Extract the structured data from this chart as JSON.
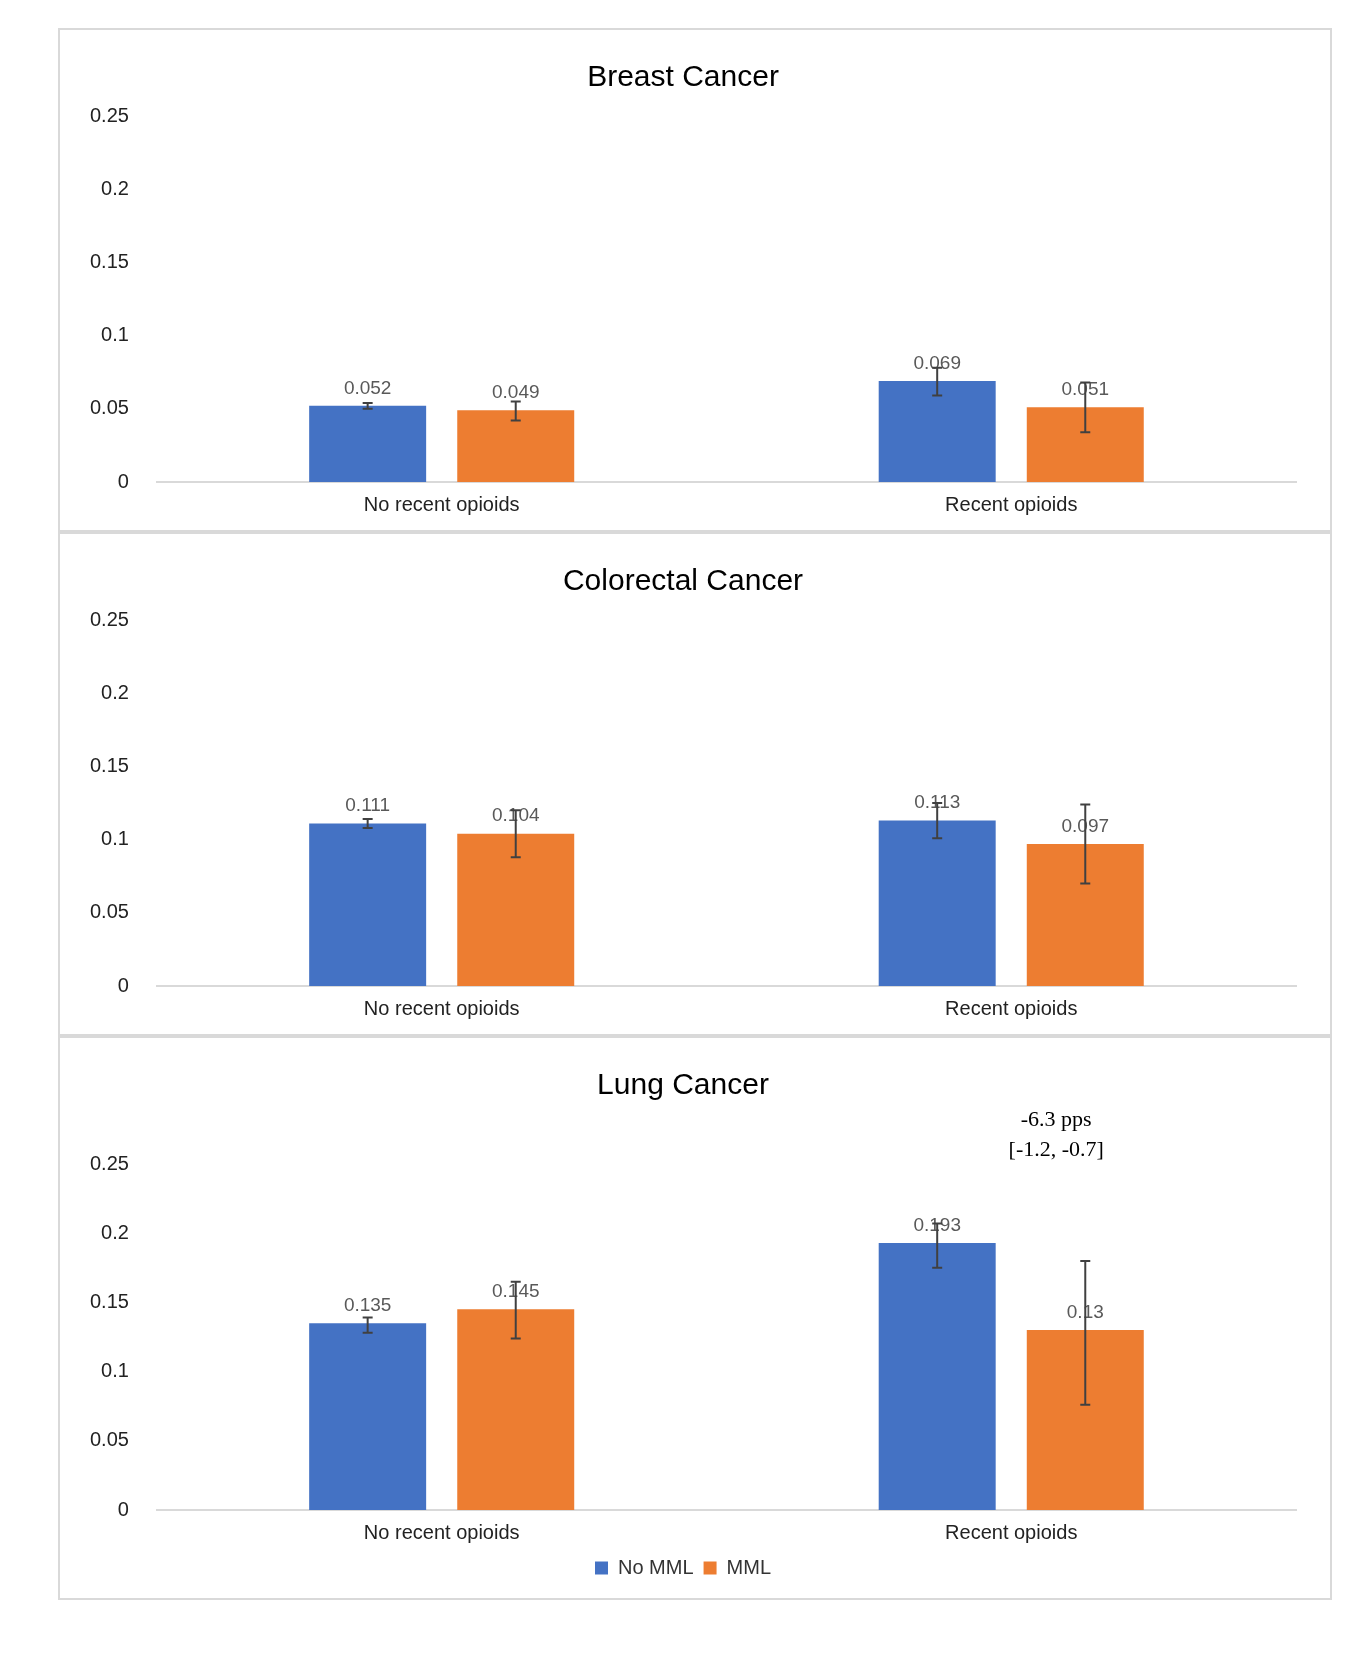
{
  "chart_data": [
    {
      "type": "bar",
      "title": "Breast Cancer",
      "categories": [
        "No recent opioids",
        "Recent opioids"
      ],
      "series": [
        {
          "color": "#4472c4",
          "values": [
            0.052,
            0.069
          ],
          "errors": [
            [
              0.05,
              0.054
            ],
            [
              0.059,
              0.078
            ]
          ]
        },
        {
          "color": "#ed7d31",
          "values": [
            0.049,
            0.051
          ],
          "errors": [
            [
              0.042,
              0.055
            ],
            [
              0.034,
              0.068
            ]
          ]
        }
      ],
      "ylim": [
        0,
        0.25
      ],
      "yticks": [
        0,
        0.05,
        0.1,
        0.15,
        0.2,
        0.25
      ],
      "grid": false,
      "data_labels": true
    },
    {
      "type": "bar",
      "title": "Colorectal Cancer",
      "categories": [
        "No recent opioids",
        "Recent opioids"
      ],
      "series": [
        {
          "color": "#4472c4",
          "values": [
            0.111,
            0.113
          ],
          "errors": [
            [
              0.108,
              0.114
            ],
            [
              0.101,
              0.125
            ]
          ]
        },
        {
          "color": "#ed7d31",
          "values": [
            0.104,
            0.097
          ],
          "errors": [
            [
              0.088,
              0.12
            ],
            [
              0.07,
              0.124
            ]
          ]
        }
      ],
      "ylim": [
        0,
        0.25
      ],
      "yticks": [
        0,
        0.05,
        0.1,
        0.15,
        0.2,
        0.25
      ],
      "grid": false,
      "data_labels": true
    },
    {
      "type": "bar",
      "title": "Lung Cancer",
      "categories": [
        "No recent opioids",
        "Recent opioids"
      ],
      "series": [
        {
          "name": "No MML",
          "color": "#4472c4",
          "values": [
            0.135,
            0.193
          ],
          "errors": [
            [
              0.128,
              0.139
            ],
            [
              0.175,
              0.207
            ]
          ]
        },
        {
          "name": "MML",
          "color": "#ed7d31",
          "values": [
            0.145,
            0.13
          ],
          "errors": [
            [
              0.124,
              0.165
            ],
            [
              0.076,
              0.18
            ]
          ]
        }
      ],
      "ylim": [
        0,
        0.25
      ],
      "yticks": [
        0,
        0.05,
        0.1,
        0.15,
        0.2,
        0.25
      ],
      "grid": false,
      "data_labels": true,
      "legend": "bottom",
      "annotations": [
        "-6.3 pps\n[-1.2, -0.7]"
      ]
    }
  ]
}
